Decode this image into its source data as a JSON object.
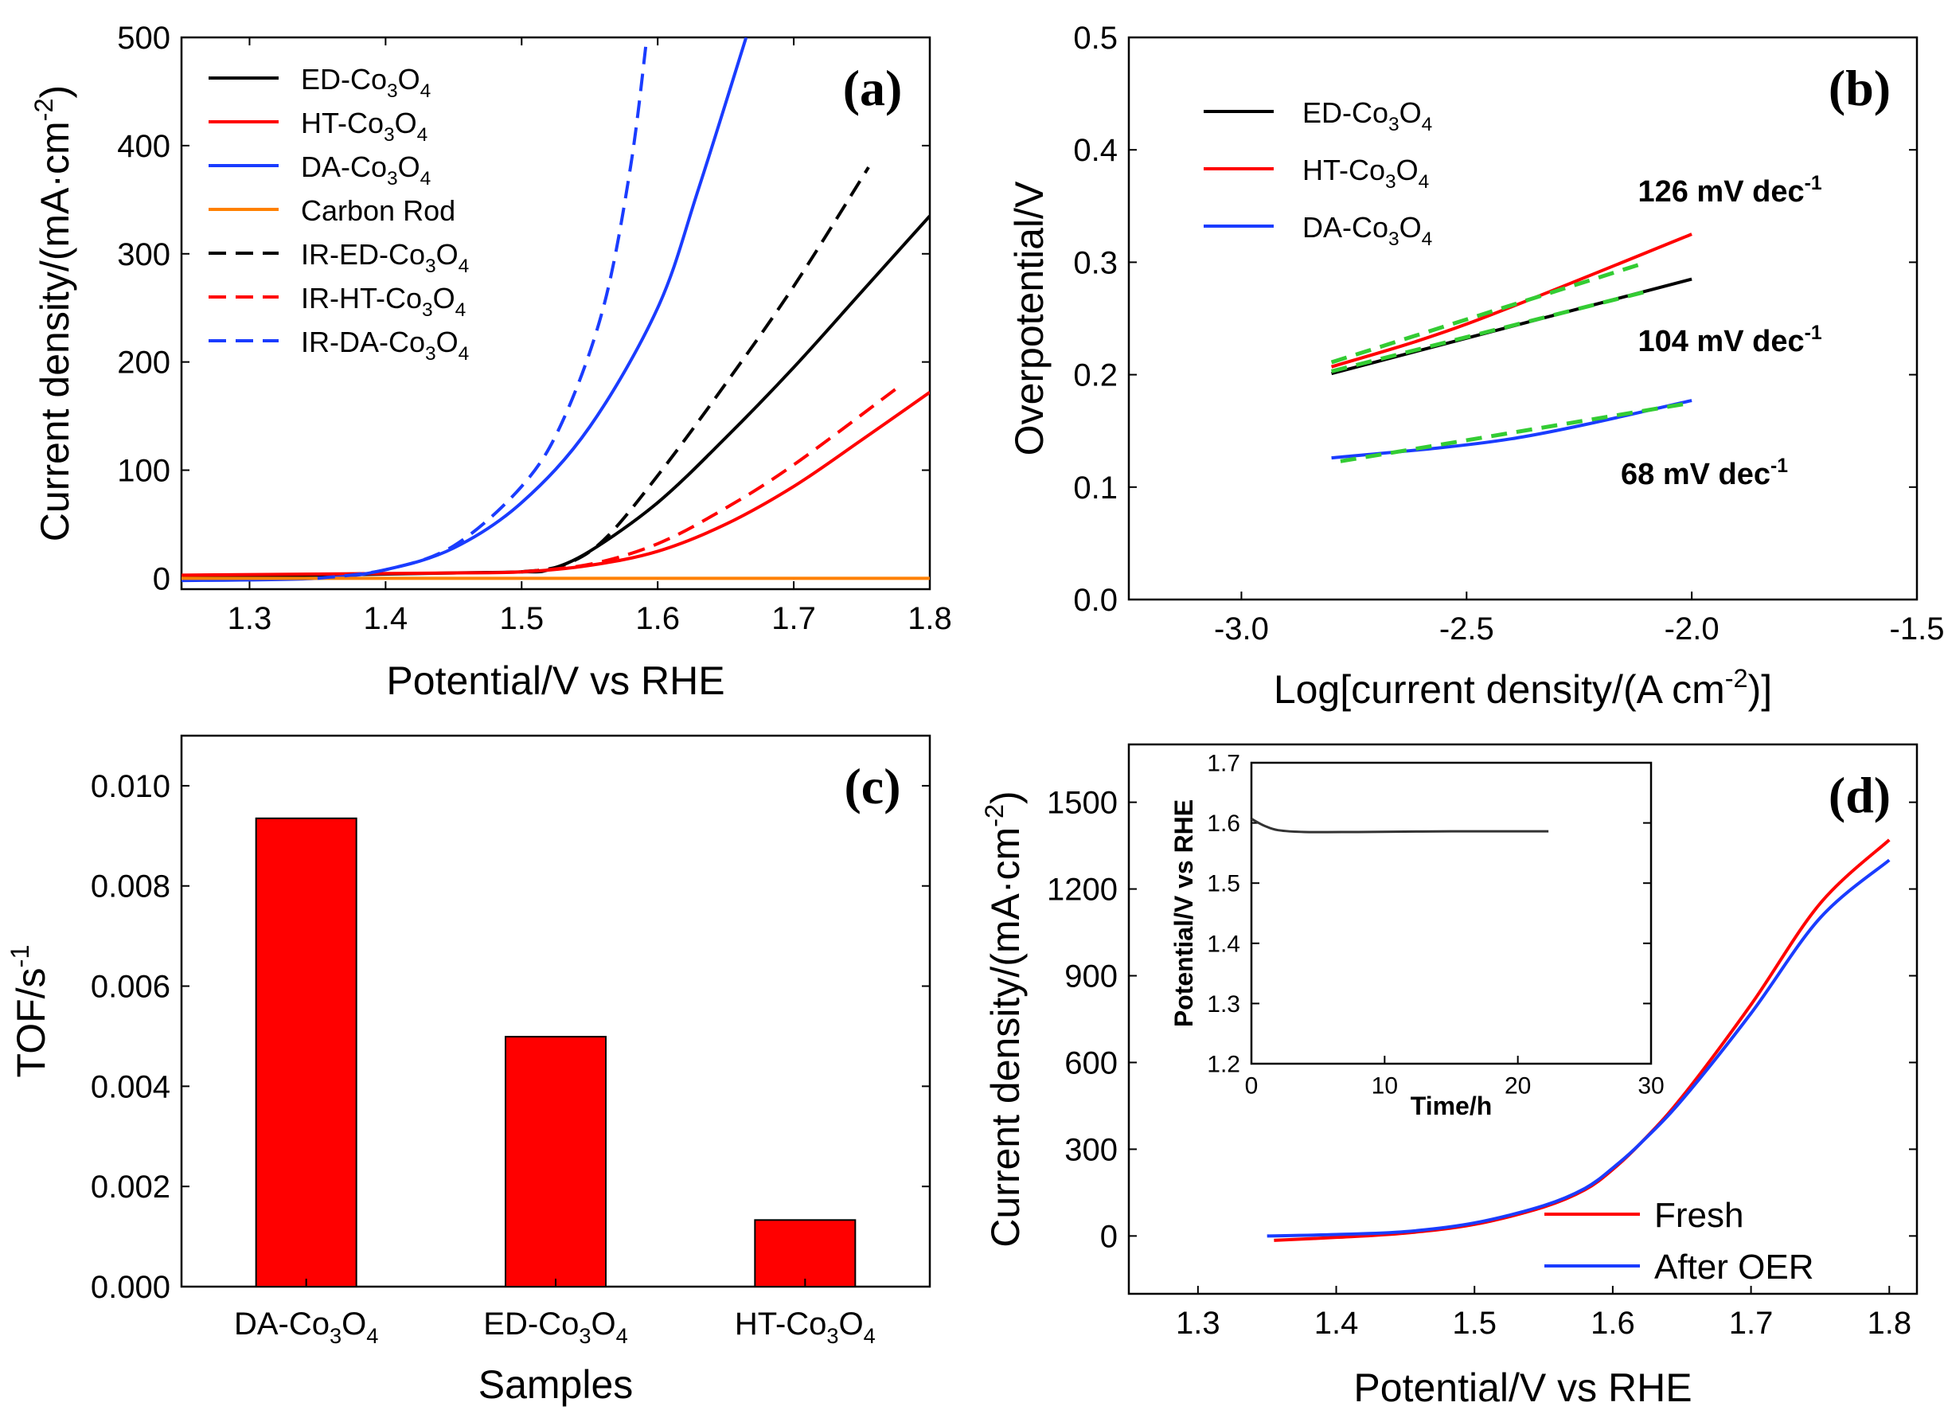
{
  "chart_data": [
    {
      "type": "line",
      "panel_label": "(a)",
      "xlabel": "Potential/V vs RHE",
      "ylabel": {
        "main": "Current density/(mA·cm",
        "sup": "-2",
        "close": ")"
      },
      "xlim": [
        1.25,
        1.8
      ],
      "ylim": [
        -10,
        500
      ],
      "xticks": [
        1.3,
        1.4,
        1.5,
        1.6,
        1.7,
        1.8
      ],
      "xtick_labels": [
        "1.3",
        "1.4",
        "1.5",
        "1.6",
        "1.7",
        "1.8"
      ],
      "yticks": [
        0,
        100,
        200,
        300,
        400,
        500
      ],
      "ytick_labels": [
        "0",
        "100",
        "200",
        "300",
        "400",
        "500"
      ],
      "legend_position": "top-left",
      "series": [
        {
          "name": "ED-Co3O4",
          "label": {
            "base": "ED-Co",
            "s1": "3",
            "mid": "O",
            "s2": "4"
          },
          "color": "#000000",
          "dash": false,
          "x": [
            1.25,
            1.35,
            1.45,
            1.5,
            1.52,
            1.55,
            1.6,
            1.65,
            1.7,
            1.75,
            1.8
          ],
          "y": [
            2,
            3,
            5,
            6,
            8,
            25,
            70,
            130,
            195,
            265,
            335
          ]
        },
        {
          "name": "HT-Co3O4",
          "label": {
            "base": "HT-Co",
            "s1": "3",
            "mid": "O",
            "s2": "4"
          },
          "color": "#ff0000",
          "dash": false,
          "x": [
            1.25,
            1.35,
            1.45,
            1.5,
            1.55,
            1.6,
            1.65,
            1.7,
            1.75,
            1.8
          ],
          "y": [
            3,
            4,
            5,
            6,
            12,
            25,
            50,
            85,
            128,
            172
          ]
        },
        {
          "name": "DA-Co3O4",
          "label": {
            "base": "DA-Co",
            "s1": "3",
            "mid": "O",
            "s2": "4"
          },
          "color": "#1a3cff",
          "dash": false,
          "x": [
            1.25,
            1.35,
            1.4,
            1.45,
            1.5,
            1.55,
            1.6,
            1.63,
            1.665
          ],
          "y": [
            -2,
            0,
            8,
            28,
            70,
            140,
            250,
            360,
            500
          ]
        },
        {
          "name": "Carbon Rod",
          "label": {
            "base": "Carbon Rod",
            "s1": "",
            "mid": "",
            "s2": ""
          },
          "color": "#ff8000",
          "dash": false,
          "x": [
            1.25,
            1.8
          ],
          "y": [
            0,
            0
          ]
        },
        {
          "name": "IR-ED-Co3O4",
          "label": {
            "base": "IR-ED-Co",
            "s1": "3",
            "mid": "O",
            "s2": "4"
          },
          "color": "#000000",
          "dash": true,
          "x": [
            1.5,
            1.53,
            1.56,
            1.6,
            1.65,
            1.7,
            1.755
          ],
          "y": [
            6,
            12,
            35,
            95,
            180,
            270,
            380
          ]
        },
        {
          "name": "IR-HT-Co3O4",
          "label": {
            "base": "IR-HT-Co",
            "s1": "3",
            "mid": "O",
            "s2": "4"
          },
          "color": "#ff0000",
          "dash": true,
          "x": [
            1.5,
            1.55,
            1.6,
            1.65,
            1.7,
            1.775
          ],
          "y": [
            6,
            13,
            32,
            65,
            105,
            175
          ]
        },
        {
          "name": "IR-DA-Co3O4",
          "label": {
            "base": "IR-DA-Co",
            "s1": "3",
            "mid": "O",
            "s2": "4"
          },
          "color": "#1a3cff",
          "dash": true,
          "x": [
            1.35,
            1.4,
            1.45,
            1.5,
            1.53,
            1.56,
            1.58,
            1.592
          ],
          "y": [
            0,
            8,
            30,
            85,
            145,
            250,
            380,
            500
          ]
        }
      ]
    },
    {
      "type": "line",
      "panel_label": "(b)",
      "xlabel": {
        "main": "Log[current density/(A cm",
        "sup": "-2",
        "close": ")]"
      },
      "ylabel": "Overpotential/V",
      "xlim": [
        -3.25,
        -1.5
      ],
      "ylim": [
        0.0,
        0.5
      ],
      "xticks": [
        -3.0,
        -2.5,
        -2.0,
        -1.5
      ],
      "xtick_labels": [
        "-3.0",
        "-2.5",
        "-2.0",
        "-1.5"
      ],
      "yticks": [
        0.0,
        0.1,
        0.2,
        0.3,
        0.4,
        0.5
      ],
      "ytick_labels": [
        "0.0",
        "0.1",
        "0.2",
        "0.3",
        "0.4",
        "0.5"
      ],
      "legend_position": "top-left",
      "series": [
        {
          "name": "ED-Co3O4",
          "label": {
            "base": "ED-Co",
            "s1": "3",
            "mid": "O",
            "s2": "4"
          },
          "color": "#000000",
          "x": [
            -2.8,
            -2.0
          ],
          "y": [
            0.201,
            0.285
          ]
        },
        {
          "name": "HT-Co3O4",
          "label": {
            "base": "HT-Co",
            "s1": "3",
            "mid": "O",
            "s2": "4"
          },
          "color": "#ff0000",
          "x": [
            -2.8,
            -2.5,
            -2.0
          ],
          "y": [
            0.207,
            0.245,
            0.325
          ]
        },
        {
          "name": "DA-Co3O4",
          "label": {
            "base": "DA-Co",
            "s1": "3",
            "mid": "O",
            "s2": "4"
          },
          "color": "#1a3cff",
          "x": [
            -2.8,
            -2.4,
            -2.0
          ],
          "y": [
            0.126,
            0.143,
            0.177
          ]
        }
      ],
      "fits": [
        {
          "name": "ED fit",
          "color": "#33cc33",
          "x": [
            -2.8,
            -2.1
          ],
          "y": [
            0.203,
            0.274
          ]
        },
        {
          "name": "HT fit",
          "color": "#33cc33",
          "x": [
            -2.8,
            -2.1
          ],
          "y": [
            0.211,
            0.3
          ]
        },
        {
          "name": "DA fit",
          "color": "#33cc33",
          "x": [
            -2.78,
            -2.0
          ],
          "y": [
            0.123,
            0.175
          ]
        }
      ],
      "annotations": [
        {
          "text": "126 mV dec",
          "sup": "-1",
          "color": "#ff0000"
        },
        {
          "text": "104 mV dec",
          "sup": "-1",
          "color": "#000000"
        },
        {
          "text": "68 mV dec",
          "sup": "-1",
          "color": "#1a3cff"
        }
      ]
    },
    {
      "type": "bar",
      "panel_label": "(c)",
      "xlabel": "Samples",
      "ylabel": {
        "main": "TOF/s",
        "sup": "-1"
      },
      "ylim": [
        0.0,
        0.011
      ],
      "yticks": [
        0.0,
        0.002,
        0.004,
        0.006,
        0.008,
        0.01
      ],
      "ytick_labels": [
        "0.000",
        "0.002",
        "0.004",
        "0.006",
        "0.008",
        "0.010"
      ],
      "categories": [
        {
          "base": "DA-Co",
          "s1": "3",
          "mid": "O",
          "s2": "4"
        },
        {
          "base": "ED-Co",
          "s1": "3",
          "mid": "O",
          "s2": "4"
        },
        {
          "base": "HT-Co",
          "s1": "3",
          "mid": "O",
          "s2": "4"
        }
      ],
      "values": [
        0.00935,
        0.00499,
        0.00133
      ],
      "bar_color": "#ff0000"
    },
    {
      "type": "line",
      "panel_label": "(d)",
      "xlabel": "Potential/V vs RHE",
      "ylabel": {
        "main": "Current density/(mA·cm",
        "sup": "-2",
        "close": ")"
      },
      "xlim": [
        1.25,
        1.82
      ],
      "ylim": [
        -200,
        1700
      ],
      "xticks": [
        1.3,
        1.4,
        1.5,
        1.6,
        1.7,
        1.8
      ],
      "xtick_labels": [
        "1.3",
        "1.4",
        "1.5",
        "1.6",
        "1.7",
        "1.8"
      ],
      "yticks": [
        0,
        300,
        600,
        900,
        1200,
        1500
      ],
      "ytick_labels": [
        "0",
        "300",
        "600",
        "900",
        "1200",
        "1500"
      ],
      "legend_position": "bottom-right",
      "series": [
        {
          "name": "Fresh",
          "color": "#ff0000",
          "x": [
            1.355,
            1.4,
            1.45,
            1.5,
            1.55,
            1.58,
            1.6,
            1.62,
            1.65,
            1.7,
            1.75,
            1.8
          ],
          "y": [
            -15,
            -5,
            10,
            40,
            100,
            160,
            230,
            320,
            480,
            800,
            1150,
            1370
          ]
        },
        {
          "name": "After OER",
          "color": "#1a3cff",
          "x": [
            1.35,
            1.4,
            1.45,
            1.5,
            1.55,
            1.58,
            1.6,
            1.62,
            1.65,
            1.7,
            1.75,
            1.8
          ],
          "y": [
            0,
            5,
            15,
            45,
            105,
            165,
            235,
            320,
            470,
            770,
            1100,
            1300
          ]
        }
      ],
      "inset": {
        "xlabel": "Time/h",
        "ylabel": "Potential/V vs RHE",
        "xlim": [
          0,
          30
        ],
        "ylim": [
          1.2,
          1.7
        ],
        "xticks": [
          0,
          10,
          20,
          30
        ],
        "xtick_labels": [
          "0",
          "10",
          "20",
          "30"
        ],
        "yticks": [
          1.2,
          1.3,
          1.4,
          1.5,
          1.6,
          1.7
        ],
        "ytick_labels": [
          "1.2",
          "1.3",
          "1.4",
          "1.5",
          "1.6",
          "1.7"
        ],
        "series": [
          {
            "name": "stability",
            "color": "#333333",
            "x": [
              0,
              0.3,
              1,
              2,
              4,
              8,
              15,
              22.3
            ],
            "y": [
              1.607,
              1.603,
              1.595,
              1.588,
              1.585,
              1.585,
              1.586,
              1.586
            ]
          }
        ]
      }
    }
  ]
}
